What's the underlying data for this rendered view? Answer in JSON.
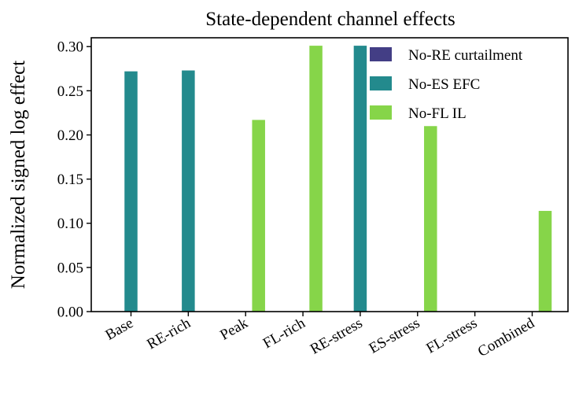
{
  "chart_data": {
    "type": "bar",
    "title": "State-dependent channel effects",
    "xlabel": "",
    "ylabel": "Normalized signed log effect",
    "categories": [
      "Base",
      "RE-rich",
      "Peak",
      "FL-rich",
      "RE-stress",
      "ES-stress",
      "FL-stress",
      "Combined"
    ],
    "series": [
      {
        "name": "No-RE curtailment",
        "color": "#433e85",
        "values": [
          0,
          0,
          0,
          0,
          0,
          0,
          0,
          0
        ]
      },
      {
        "name": "No-ES EFC",
        "color": "#238a8d",
        "values": [
          0.272,
          0.273,
          0,
          0,
          0.301,
          0,
          0,
          0
        ]
      },
      {
        "name": "No-FL IL",
        "color": "#86d549",
        "values": [
          0,
          0,
          0.217,
          0.301,
          0,
          0.21,
          0,
          0.114
        ]
      }
    ],
    "ylim": [
      0,
      0.31
    ],
    "yticks": [
      0.0,
      0.05,
      0.1,
      0.15,
      0.2,
      0.25,
      0.3
    ],
    "ytick_labels": [
      "0.00",
      "0.05",
      "0.10",
      "0.15",
      "0.20",
      "0.25",
      "0.30"
    ],
    "grid": false,
    "legend_position": "top-right"
  }
}
